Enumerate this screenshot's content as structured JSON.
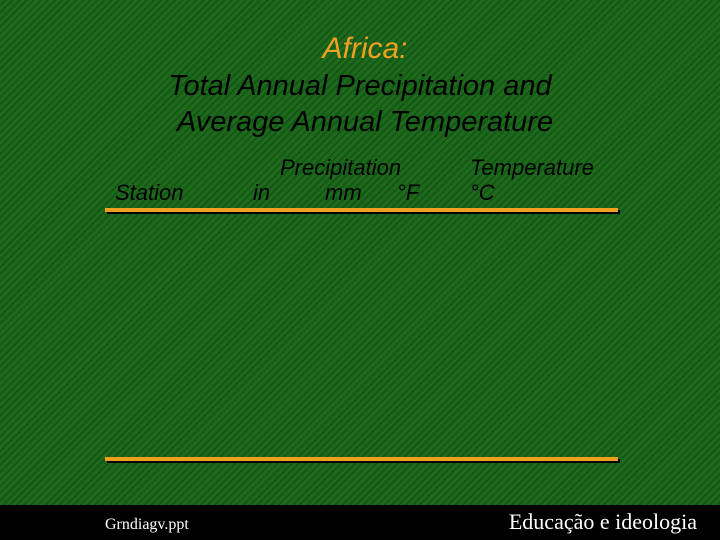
{
  "header": {
    "title": "Africa:",
    "subtitle": [
      "Total Annual Precipitation and",
      "Average Annual Temperature"
    ]
  },
  "table": {
    "columns": {
      "station": "Station",
      "precipitation": "Precipitation",
      "precipitation_units": [
        "in",
        "mm",
        "°F"
      ],
      "temperature": "Temperature",
      "temperature_unit": "°C"
    }
  },
  "footer": {
    "file": "Grndiagv.ppt",
    "brand": "Educação e ideologia"
  }
}
